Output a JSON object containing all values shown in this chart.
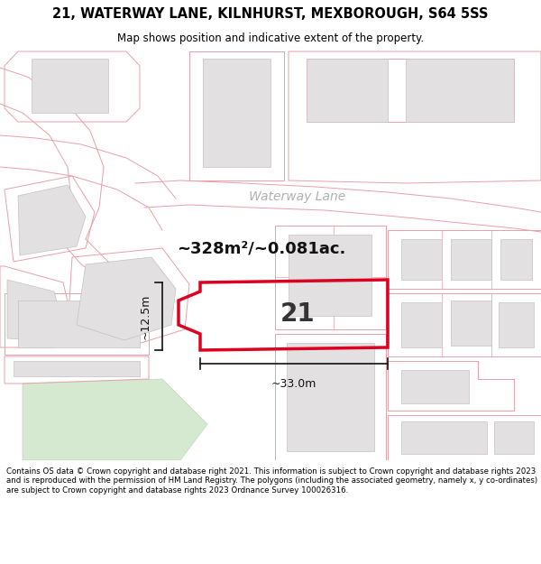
{
  "title_line1": "21, WATERWAY LANE, KILNHURST, MEXBOROUGH, S64 5SS",
  "title_line2": "Map shows position and indicative extent of the property.",
  "footer_text": "Contains OS data © Crown copyright and database right 2021. This information is subject to Crown copyright and database rights 2023 and is reproduced with the permission of HM Land Registry. The polygons (including the associated geometry, namely x, y co-ordinates) are subject to Crown copyright and database rights 2023 Ordnance Survey 100026316.",
  "area_text": "~328m²/~0.081ac.",
  "street_label": "Waterway Lane",
  "property_number": "21",
  "dim_width": "~33.0m",
  "dim_height": "~12.5m",
  "map_bg": "#ffffff",
  "plot_line_color": "#e8a0a8",
  "building_fill": "#e0dede",
  "building_edge": "#c8c0c0",
  "highlight_edge": "#dd0020",
  "highlight_lw": 2.5,
  "dim_color": "#111111",
  "area_text_color": "#111111",
  "street_label_color": "#a8a8a8",
  "green_fill": "#d8e8d0"
}
